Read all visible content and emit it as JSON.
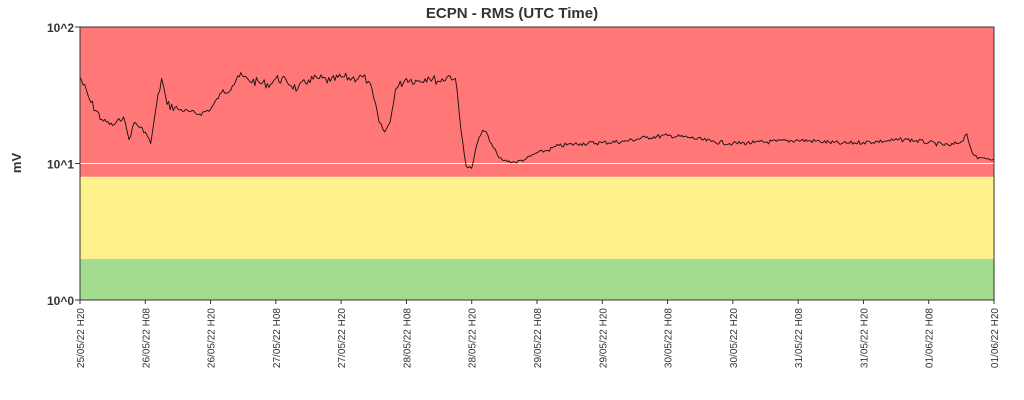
{
  "chart_data": {
    "type": "line",
    "title": "ECPN - RMS (UTC Time)",
    "ylabel": "mV",
    "yscale": "log",
    "ylim": [
      1,
      100
    ],
    "yticks": [
      {
        "value": 1,
        "label": "10^0"
      },
      {
        "value": 10,
        "label": "10^1"
      },
      {
        "value": 100,
        "label": "10^2"
      }
    ],
    "xlim": [
      "2022-05-25T20:00",
      "2022-06-01T20:00"
    ],
    "xticks": [
      "25/05/22 H20",
      "26/05/22 H08",
      "26/05/22 H20",
      "27/05/22 H08",
      "27/05/22 H20",
      "28/05/22 H08",
      "28/05/22 H20",
      "29/05/22 H08",
      "29/05/22 H20",
      "30/05/22 H08",
      "30/05/22 H20",
      "31/05/22 H08",
      "31/05/22 H20",
      "01/06/22 H08",
      "01/06/22 H20"
    ],
    "bands": [
      {
        "from": 1,
        "to": 2,
        "color": "#a3dc8e"
      },
      {
        "from": 2,
        "to": 8,
        "color": "#fff28c"
      },
      {
        "from": 8,
        "to": 100,
        "color": "#ff7777"
      }
    ],
    "reference_line": {
      "value": 10,
      "color": "#ffffff"
    },
    "series": [
      {
        "color": "#111111",
        "points": [
          [
            "2022-05-25T20:00",
            43
          ],
          [
            "2022-05-25T22:00",
            28
          ],
          [
            "2022-05-26T00:00",
            21
          ],
          [
            "2022-05-26T02:00",
            19
          ],
          [
            "2022-05-26T04:00",
            22
          ],
          [
            "2022-05-26T05:00",
            15
          ],
          [
            "2022-05-26T06:00",
            20
          ],
          [
            "2022-05-26T08:00",
            17
          ],
          [
            "2022-05-26T09:00",
            14
          ],
          [
            "2022-05-26T10:00",
            26
          ],
          [
            "2022-05-26T11:00",
            42
          ],
          [
            "2022-05-26T12:00",
            27
          ],
          [
            "2022-05-26T14:00",
            25
          ],
          [
            "2022-05-26T16:00",
            24
          ],
          [
            "2022-05-26T18:00",
            23
          ],
          [
            "2022-05-26T20:00",
            25
          ],
          [
            "2022-05-26T22:00",
            33
          ],
          [
            "2022-05-27T00:00",
            37
          ],
          [
            "2022-05-27T01:00",
            44
          ],
          [
            "2022-05-27T03:00",
            41
          ],
          [
            "2022-05-27T05:00",
            39
          ],
          [
            "2022-05-27T07:00",
            38
          ],
          [
            "2022-05-27T08:00",
            42
          ],
          [
            "2022-05-27T10:00",
            40
          ],
          [
            "2022-05-27T12:00",
            35
          ],
          [
            "2022-05-27T14:00",
            41
          ],
          [
            "2022-05-27T16:00",
            42
          ],
          [
            "2022-05-27T18:00",
            40
          ],
          [
            "2022-05-27T20:00",
            43
          ],
          [
            "2022-05-27T22:00",
            42
          ],
          [
            "2022-05-28T00:00",
            43
          ],
          [
            "2022-05-28T01:00",
            40
          ],
          [
            "2022-05-28T02:00",
            30
          ],
          [
            "2022-05-28T03:00",
            20
          ],
          [
            "2022-05-28T04:00",
            17
          ],
          [
            "2022-05-28T05:00",
            20
          ],
          [
            "2022-05-28T06:00",
            35
          ],
          [
            "2022-05-28T08:00",
            42
          ],
          [
            "2022-05-28T10:00",
            40
          ],
          [
            "2022-05-28T12:00",
            43
          ],
          [
            "2022-05-28T14:00",
            40
          ],
          [
            "2022-05-28T16:00",
            44
          ],
          [
            "2022-05-28T17:00",
            42
          ],
          [
            "2022-05-28T18:00",
            18
          ],
          [
            "2022-05-28T19:00",
            9.5
          ],
          [
            "2022-05-28T20:00",
            9.2
          ],
          [
            "2022-05-28T21:00",
            14
          ],
          [
            "2022-05-28T22:00",
            17.5
          ],
          [
            "2022-05-28T23:00",
            16
          ],
          [
            "2022-05-29T00:00",
            13
          ],
          [
            "2022-05-29T01:00",
            11
          ],
          [
            "2022-05-29T02:00",
            10.5
          ],
          [
            "2022-05-29T04:00",
            10.2
          ],
          [
            "2022-05-29T06:00",
            10.8
          ],
          [
            "2022-05-29T08:00",
            12
          ],
          [
            "2022-05-29T10:00",
            12.5
          ],
          [
            "2022-05-29T12:00",
            13.5
          ],
          [
            "2022-05-29T16:00",
            14
          ],
          [
            "2022-05-29T20:00",
            14.2
          ],
          [
            "2022-05-30T00:00",
            14.5
          ],
          [
            "2022-05-30T04:00",
            15.5
          ],
          [
            "2022-05-30T08:00",
            16
          ],
          [
            "2022-05-30T12:00",
            15.5
          ],
          [
            "2022-05-30T16:00",
            14.5
          ],
          [
            "2022-05-30T20:00",
            14
          ],
          [
            "2022-05-31T00:00",
            14.2
          ],
          [
            "2022-05-31T04:00",
            14.5
          ],
          [
            "2022-05-31T08:00",
            14.8
          ],
          [
            "2022-05-31T12:00",
            14.5
          ],
          [
            "2022-05-31T16:00",
            14
          ],
          [
            "2022-05-31T20:00",
            14.3
          ],
          [
            "2022-06-01T00:00",
            14.6
          ],
          [
            "2022-06-01T04:00",
            15
          ],
          [
            "2022-06-01T08:00",
            14.2
          ],
          [
            "2022-06-01T12:00",
            13.5
          ],
          [
            "2022-06-01T14:00",
            14.5
          ],
          [
            "2022-06-01T15:00",
            16.5
          ],
          [
            "2022-06-01T16:00",
            12
          ],
          [
            "2022-06-01T17:00",
            10.8
          ],
          [
            "2022-06-01T18:00",
            11
          ],
          [
            "2022-06-01T20:00",
            10.8
          ]
        ]
      }
    ]
  }
}
